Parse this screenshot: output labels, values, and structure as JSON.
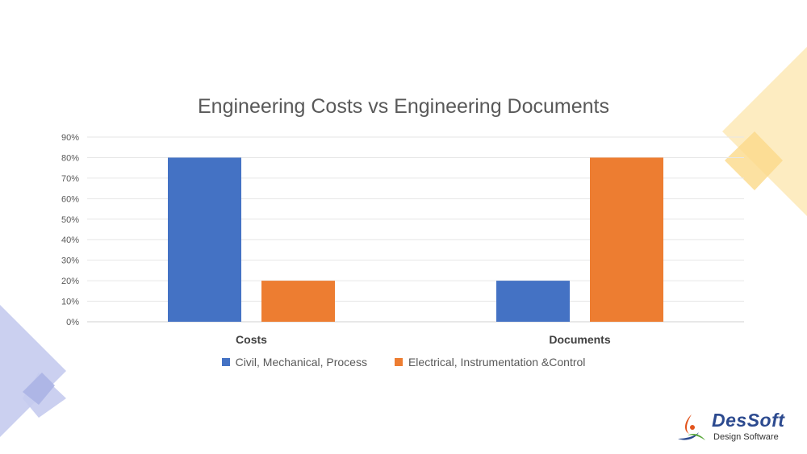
{
  "chart_data": {
    "type": "bar",
    "title": "Engineering Costs vs Engineering Documents",
    "categories": [
      "Costs",
      "Documents"
    ],
    "series": [
      {
        "name": "Civil, Mechanical, Process",
        "values": [
          80,
          20
        ],
        "color": "#4472c4"
      },
      {
        "name": "Electrical, Instrumentation &Control",
        "values": [
          20,
          80
        ],
        "color": "#ed7d31"
      }
    ],
    "ylim": [
      0,
      90
    ],
    "yticks": [
      "0%",
      "10%",
      "20%",
      "30%",
      "40%",
      "50%",
      "60%",
      "70%",
      "80%",
      "90%"
    ],
    "grid": true,
    "legend_position": "bottom"
  },
  "branding": {
    "logo_name": "DesSoft",
    "logo_tagline": "Design Software",
    "logo_icon": "dessoft-swirl-icon"
  },
  "colors": {
    "blue": "#4472c4",
    "orange": "#ed7d31",
    "deco_blue": "#c5cbee",
    "deco_yellow": "#fde9b6"
  }
}
